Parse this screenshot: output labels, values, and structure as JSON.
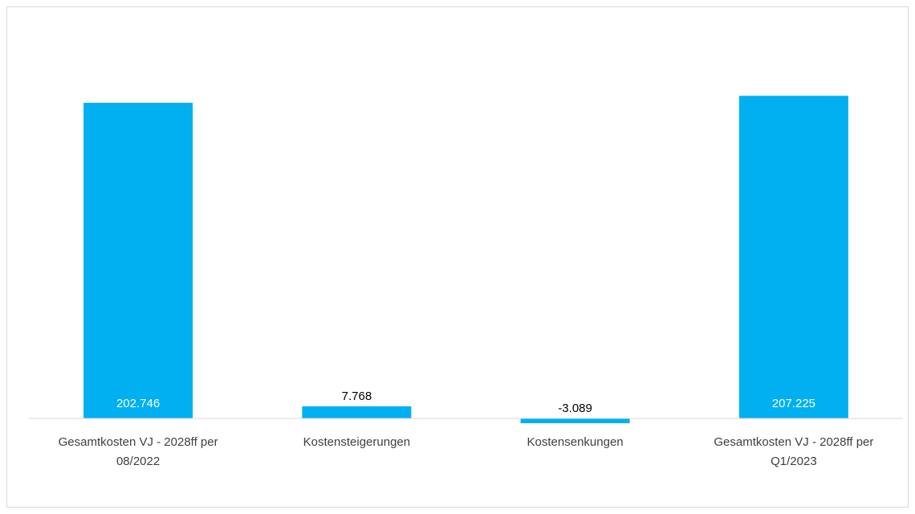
{
  "chart_data": {
    "type": "bar",
    "title": "",
    "xlabel": "",
    "ylabel": "",
    "categories": [
      [
        "Gesamtkosten VJ - 2028ff per",
        "08/2022"
      ],
      [
        "Kostensteigerungen"
      ],
      [
        "Kostensenkungen"
      ],
      [
        "Gesamtkosten VJ - 2028ff per",
        "Q1/2023"
      ]
    ],
    "values": [
      202746,
      7768,
      -3089,
      207225
    ],
    "data_labels": [
      "202.746",
      "7.768",
      "-3.089",
      "207.225"
    ],
    "label_inside_bar": [
      true,
      false,
      false,
      true
    ],
    "bar_color": "#00B0F0",
    "inside_label_color": "#ffffff",
    "outside_label_color": "#000000",
    "axis_color": "#d9d9d9",
    "grid": false,
    "legend": "none",
    "ylim": [
      -10000,
      210000
    ]
  }
}
